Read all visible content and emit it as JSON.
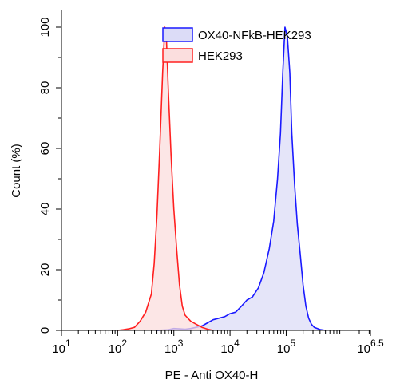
{
  "chart_data": {
    "type": "area",
    "xlabel": "PE - Anti OX40-H",
    "ylabel": "Count  (%)",
    "x_scale": "log10",
    "xlim": [
      10,
      3162277.66
    ],
    "ylim": [
      0,
      105
    ],
    "x_ticks": [
      {
        "value": 10,
        "base": "10",
        "exp": "1"
      },
      {
        "value": 100,
        "base": "10",
        "exp": "2"
      },
      {
        "value": 1000,
        "base": "10",
        "exp": "3"
      },
      {
        "value": 10000,
        "base": "10",
        "exp": "4"
      },
      {
        "value": 100000,
        "base": "10",
        "exp": "5"
      },
      {
        "value": 3162277.66,
        "base": "10",
        "exp": "6.5"
      }
    ],
    "y_ticks": [
      0,
      20,
      40,
      60,
      80,
      100
    ],
    "grid": false,
    "legend_position": "top-right",
    "series": [
      {
        "name": "OX40-NFkB-HEK293",
        "line_color": "#1a1aff",
        "fill_color": "#dcdcf7",
        "points": [
          [
            500,
            0
          ],
          [
            800,
            0.2
          ],
          [
            1000,
            0.6
          ],
          [
            1250,
            0.5
          ],
          [
            1600,
            0.4
          ],
          [
            2000,
            0.6
          ],
          [
            2500,
            1.0
          ],
          [
            3200,
            1.5
          ],
          [
            4000,
            2.5
          ],
          [
            5000,
            3.5
          ],
          [
            6300,
            4.0
          ],
          [
            8000,
            4.5
          ],
          [
            10000,
            5.5
          ],
          [
            12600,
            6.0
          ],
          [
            16000,
            8.0
          ],
          [
            20000,
            10.0
          ],
          [
            25000,
            11.0
          ],
          [
            32000,
            14.0
          ],
          [
            40000,
            19.0
          ],
          [
            50000,
            27.0
          ],
          [
            60000,
            36.0
          ],
          [
            70000,
            50.0
          ],
          [
            79000,
            65.0
          ],
          [
            87000,
            85.0
          ],
          [
            95000,
            100.0
          ],
          [
            105000,
            97.0
          ],
          [
            116000,
            85.0
          ],
          [
            126000,
            65.0
          ],
          [
            141000,
            48.0
          ],
          [
            158000,
            35.0
          ],
          [
            178000,
            25.0
          ],
          [
            200000,
            15.0
          ],
          [
            224000,
            8.0
          ],
          [
            251000,
            4.0
          ],
          [
            282000,
            2.0
          ],
          [
            316000,
            1.0
          ],
          [
            398000,
            0.3
          ],
          [
            501000,
            0
          ]
        ]
      },
      {
        "name": "HEK293",
        "line_color": "#ff2020",
        "fill_color": "#fbdede",
        "points": [
          [
            100,
            0
          ],
          [
            126,
            0.2
          ],
          [
            158,
            0.5
          ],
          [
            200,
            1.0
          ],
          [
            251,
            3.0
          ],
          [
            316,
            6.0
          ],
          [
            398,
            12.0
          ],
          [
            447,
            22.0
          ],
          [
            501,
            38.0
          ],
          [
            562,
            60.0
          ],
          [
            631,
            85.0
          ],
          [
            690,
            100.0
          ],
          [
            741,
            95.0
          ],
          [
            794,
            80.0
          ],
          [
            891,
            58.0
          ],
          [
            1000,
            40.0
          ],
          [
            1122,
            27.0
          ],
          [
            1259,
            15.0
          ],
          [
            1413,
            8.0
          ],
          [
            1585,
            5.0
          ],
          [
            2000,
            3.0
          ],
          [
            2512,
            2.0
          ],
          [
            3162,
            1.0
          ],
          [
            3981,
            0.4
          ],
          [
            5012,
            0
          ]
        ]
      }
    ]
  }
}
